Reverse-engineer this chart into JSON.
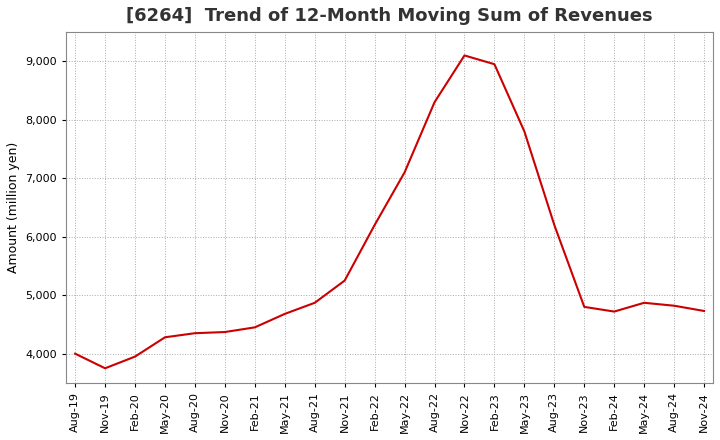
{
  "title": "[6264]  Trend of 12-Month Moving Sum of Revenues",
  "ylabel": "Amount (million yen)",
  "line_color": "#cc0000",
  "background_color": "#ffffff",
  "plot_bg_color": "#ffffff",
  "grid_color": "#aaaaaa",
  "x_labels": [
    "Aug-19",
    "Nov-19",
    "Feb-20",
    "May-20",
    "Aug-20",
    "Nov-20",
    "Feb-21",
    "May-21",
    "Aug-21",
    "Nov-21",
    "Feb-22",
    "May-22",
    "Aug-22",
    "Nov-22",
    "Feb-23",
    "May-23",
    "Aug-23",
    "Nov-23",
    "Feb-24",
    "May-24",
    "Aug-24",
    "Nov-24"
  ],
  "y_values": [
    4000,
    3750,
    3950,
    4280,
    4350,
    4370,
    4450,
    4680,
    4870,
    5250,
    6200,
    7100,
    8300,
    9100,
    8950,
    7800,
    6200,
    4800,
    4720,
    4870,
    4820,
    4730
  ],
  "ylim": [
    3500,
    9500
  ],
  "yticks": [
    4000,
    5000,
    6000,
    7000,
    8000,
    9000
  ],
  "title_fontsize": 13,
  "label_fontsize": 9,
  "tick_fontsize": 8
}
